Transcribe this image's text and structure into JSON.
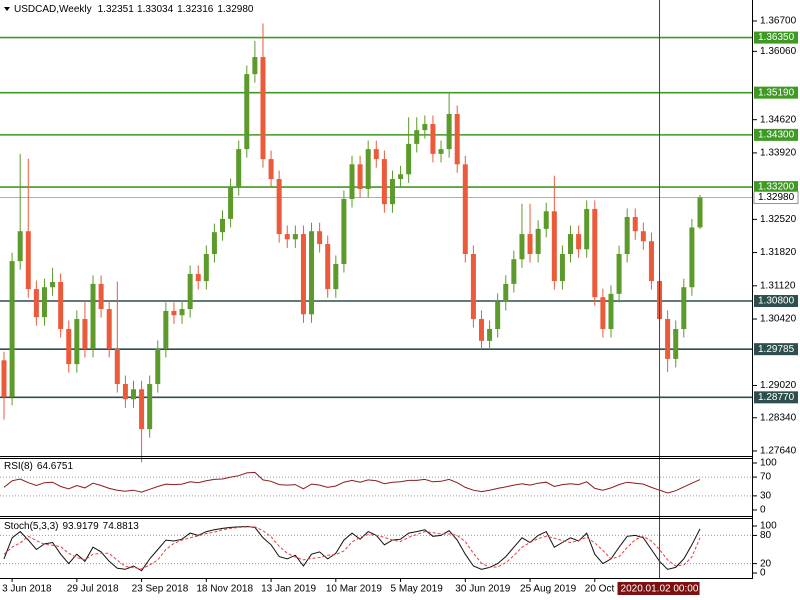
{
  "chart_data": [
    {
      "type": "candlestick",
      "symbol": "USDCAD,Weekly",
      "header_values": [
        "1.32351",
        "1.33034",
        "1.32316",
        "1.32980"
      ],
      "categories": [
        null,
        "3 Jun 2018",
        null,
        null,
        null,
        null,
        null,
        null,
        null,
        "29 Jul 2018",
        null,
        null,
        null,
        null,
        null,
        null,
        null,
        "23 Sep 2018",
        null,
        null,
        null,
        null,
        null,
        null,
        null,
        "18 Nov 2018",
        null,
        null,
        null,
        null,
        null,
        null,
        null,
        "13 Jan 2019",
        null,
        null,
        null,
        null,
        null,
        null,
        null,
        "10 Mar 2019",
        null,
        null,
        null,
        null,
        null,
        null,
        null,
        "5 May 2019",
        null,
        null,
        null,
        null,
        null,
        null,
        null,
        "30 Jun 2019",
        null,
        null,
        null,
        null,
        null,
        null,
        null,
        "25 Aug 2019",
        null,
        null,
        null,
        null,
        null,
        null,
        null,
        "20 Oct 2019",
        null,
        null,
        null,
        null,
        null,
        null,
        null,
        "2020.01.02 00:00",
        null,
        null,
        null,
        null,
        null
      ],
      "open": [
        1.2955,
        1.2878,
        1.3164,
        1.3227,
        1.3105,
        1.3046,
        1.3109,
        1.312,
        1.3021,
        1.2947,
        1.3042,
        1.2979,
        1.3116,
        1.3063,
        1.2979,
        1.2905,
        1.2873,
        1.2894,
        1.281,
        1.2905,
        1.2979,
        1.3059,
        1.305,
        1.3063,
        1.3137,
        1.3122,
        1.3179,
        1.3225,
        1.3253,
        1.332,
        1.34,
        1.3558,
        1.3594,
        1.3379,
        1.3337,
        1.3221,
        1.321,
        1.3221,
        1.3052,
        1.3227,
        1.32,
        1.3105,
        1.3158,
        1.3295,
        1.3368,
        1.3316,
        1.34,
        1.3379,
        1.3284,
        1.3337,
        1.3347,
        1.3411,
        1.344,
        1.3453,
        1.339,
        1.34,
        1.3474,
        1.3368,
        1.3179,
        1.3042,
        1.2996,
        1.3021,
        1.3078,
        1.3116,
        1.3168,
        1.3221,
        1.3179,
        1.3232,
        1.3269,
        1.3122,
        1.3179,
        1.3221,
        1.3189,
        1.3274,
        1.3088,
        1.3021,
        1.3095,
        1.3179,
        1.3257,
        1.3227,
        1.3206,
        1.3122,
        1.3042,
        1.2958,
        1.3021,
        1.3109,
        1.32351
      ],
      "high": [
        1.2973,
        1.3182,
        1.339,
        1.338,
        1.3123,
        1.3127,
        1.315,
        1.3138,
        1.3039,
        1.306,
        1.308,
        1.3134,
        1.3134,
        1.3081,
        1.3121,
        1.2923,
        1.2912,
        1.2912,
        1.2923,
        1.2997,
        1.3077,
        1.3077,
        1.3081,
        1.3155,
        1.3155,
        1.3197,
        1.3243,
        1.3271,
        1.3338,
        1.3418,
        1.3576,
        1.3628,
        1.3665,
        1.3397,
        1.3355,
        1.3239,
        1.3239,
        1.3239,
        1.3245,
        1.3245,
        1.3218,
        1.3176,
        1.3313,
        1.3386,
        1.3386,
        1.3418,
        1.3418,
        1.3397,
        1.3355,
        1.3365,
        1.3467,
        1.3467,
        1.3471,
        1.3471,
        1.3418,
        1.352,
        1.3492,
        1.3386,
        1.3197,
        1.306,
        1.3039,
        1.3096,
        1.3134,
        1.3186,
        1.3285,
        1.3285,
        1.325,
        1.3287,
        1.3344,
        1.3197,
        1.3239,
        1.3239,
        1.3292,
        1.3292,
        1.3106,
        1.3113,
        1.3197,
        1.3275,
        1.3275,
        1.3245,
        1.3224,
        1.314,
        1.306,
        1.3039,
        1.3127,
        1.3253,
        1.33034
      ],
      "low": [
        1.283,
        1.286,
        1.3146,
        1.3087,
        1.3028,
        1.3028,
        1.3091,
        1.3003,
        1.2929,
        1.2929,
        1.2961,
        1.2961,
        1.3045,
        1.2961,
        1.2887,
        1.2855,
        1.2855,
        1.274,
        1.2792,
        1.2887,
        1.2961,
        1.3032,
        1.3032,
        1.3045,
        1.3104,
        1.3104,
        1.3161,
        1.3207,
        1.3235,
        1.3302,
        1.3382,
        1.354,
        1.3361,
        1.3319,
        1.3203,
        1.3192,
        1.3192,
        1.3034,
        1.3034,
        1.3182,
        1.3087,
        1.3087,
        1.314,
        1.3277,
        1.3298,
        1.3298,
        1.3361,
        1.3266,
        1.3266,
        1.3319,
        1.3329,
        1.3393,
        1.3422,
        1.3372,
        1.3372,
        1.3382,
        1.335,
        1.3161,
        1.3024,
        1.2978,
        1.2978,
        1.3003,
        1.306,
        1.3098,
        1.315,
        1.3161,
        1.3161,
        1.3214,
        1.3104,
        1.3104,
        1.3161,
        1.3171,
        1.3171,
        1.307,
        1.3003,
        1.3003,
        1.3077,
        1.3161,
        1.3209,
        1.3188,
        1.3104,
        1.3024,
        1.293,
        1.294,
        1.3003,
        1.3091,
        1.32316
      ],
      "close": [
        1.2878,
        1.3164,
        1.3227,
        1.3105,
        1.3046,
        1.3109,
        1.312,
        1.3021,
        1.2947,
        1.3042,
        1.2979,
        1.3116,
        1.3063,
        1.2979,
        1.2905,
        1.2873,
        1.2894,
        1.281,
        1.2905,
        1.2979,
        1.3059,
        1.305,
        1.3063,
        1.3137,
        1.3122,
        1.3179,
        1.3225,
        1.3253,
        1.332,
        1.34,
        1.3558,
        1.3594,
        1.3379,
        1.3337,
        1.3221,
        1.321,
        1.3221,
        1.3052,
        1.3227,
        1.32,
        1.3105,
        1.3158,
        1.3295,
        1.3368,
        1.3316,
        1.34,
        1.3379,
        1.3284,
        1.3337,
        1.3347,
        1.3411,
        1.344,
        1.3453,
        1.339,
        1.34,
        1.3474,
        1.3368,
        1.3179,
        1.3042,
        1.2996,
        1.3021,
        1.3078,
        1.3116,
        1.3168,
        1.3221,
        1.3179,
        1.3232,
        1.3269,
        1.3122,
        1.3179,
        1.3221,
        1.3189,
        1.3274,
        1.3088,
        1.3021,
        1.3095,
        1.3179,
        1.3257,
        1.3227,
        1.3206,
        1.3122,
        1.3042,
        1.2958,
        1.3021,
        1.3109,
        1.3235,
        1.3298
      ],
      "up_color": "#5b9a2b",
      "down_color": "#ea5a3b",
      "ylim": [
        1.27555,
        1.37142
      ],
      "yticks": [
        {
          "value": 1.367,
          "label": "1.36700"
        },
        {
          "value": 1.3606,
          "label": "1.36060"
        },
        {
          "value": 1.3462,
          "label": "1.34620"
        },
        {
          "value": 1.3392,
          "label": "1.33920"
        },
        {
          "value": 1.3252,
          "label": "1.32520"
        },
        {
          "value": 1.3182,
          "label": "1.31820"
        },
        {
          "value": 1.3112,
          "label": "1.31120"
        },
        {
          "value": 1.3042,
          "label": "1.30420"
        },
        {
          "value": 1.2902,
          "label": "1.29020"
        },
        {
          "value": 1.2834,
          "label": "1.28340"
        },
        {
          "value": 1.2764,
          "label": "1.27640"
        }
      ],
      "levels": [
        {
          "value": 1.3635,
          "label": "1.36350",
          "color": "#3f9a24"
        },
        {
          "value": 1.3519,
          "label": "1.35190",
          "color": "#3f9a24"
        },
        {
          "value": 1.343,
          "label": "1.34300",
          "color": "#3f9a24"
        },
        {
          "value": 1.332,
          "label": "1.33200",
          "color": "#3f9a24"
        },
        {
          "value": 1.308,
          "label": "1.30800",
          "color": "#2f4f4f"
        },
        {
          "value": 1.29785,
          "label": "1.29785",
          "color": "#2f4f4f"
        },
        {
          "value": 1.2877,
          "label": "1.28770",
          "color": "#2f4f4f"
        }
      ],
      "current_price": {
        "value": 1.3298,
        "label": "1.32980",
        "color": "#8a96a3"
      },
      "crosshair": "2020.01.02 00:00",
      "crosshair_color": "#6b2a6b",
      "crosshair_label_color": "#7a1010"
    },
    {
      "type": "line",
      "title": "RSI(8)",
      "ylim": [
        -15,
        108.5
      ],
      "yticks": [
        100,
        70,
        30,
        0
      ],
      "guides": [
        70,
        30
      ],
      "series": [
        {
          "color": "#8b1c1c",
          "dash": false,
          "values": [
            48,
            62,
            66,
            58,
            52,
            58,
            59,
            50,
            45,
            52,
            47,
            57,
            52,
            46,
            42,
            40,
            42,
            38,
            44,
            50,
            55,
            54,
            55,
            60,
            58,
            62,
            65,
            66,
            70,
            73,
            79,
            80,
            64,
            61,
            54,
            53,
            54,
            45,
            55,
            53,
            48,
            51,
            59,
            63,
            59,
            64,
            62,
            56,
            59,
            60,
            63,
            63,
            65,
            60,
            61,
            65,
            58,
            48,
            42,
            39,
            42,
            46,
            49,
            53,
            56,
            53,
            57,
            59,
            50,
            54,
            56,
            54,
            60,
            46,
            42,
            47,
            54,
            59,
            57,
            55,
            48,
            42,
            36,
            41,
            49,
            57,
            64.6751
          ]
        }
      ]
    },
    {
      "type": "line",
      "title": "Stoch(5,3,3)",
      "ylim": [
        -10.6,
        114.9
      ],
      "yticks": [
        100,
        80,
        20,
        0
      ],
      "guides": [
        80,
        20
      ],
      "series": [
        {
          "color": "#111111",
          "dash": false,
          "values": [
            30,
            75,
            88,
            70,
            50,
            62,
            65,
            40,
            20,
            40,
            25,
            55,
            45,
            25,
            10,
            8,
            15,
            5,
            30,
            50,
            70,
            68,
            72,
            85,
            80,
            88,
            92,
            95,
            97,
            98,
            99,
            97,
            75,
            60,
            35,
            30,
            38,
            15,
            40,
            45,
            30,
            42,
            70,
            85,
            72,
            88,
            80,
            60,
            70,
            72,
            85,
            88,
            92,
            78,
            80,
            90,
            70,
            40,
            15,
            8,
            12,
            20,
            35,
            55,
            75,
            65,
            80,
            88,
            55,
            65,
            75,
            68,
            85,
            40,
            20,
            30,
            55,
            78,
            80,
            75,
            50,
            25,
            8,
            12,
            30,
            60,
            93.9179
          ]
        },
        {
          "color": "#e04040",
          "dash": true,
          "values": [
            40,
            55,
            64,
            78,
            69,
            61,
            59,
            56,
            42,
            33,
            28,
            40,
            42,
            42,
            27,
            14,
            11,
            9,
            17,
            28,
            50,
            63,
            70,
            75,
            79,
            84,
            87,
            92,
            95,
            97,
            98,
            98,
            90,
            77,
            57,
            42,
            34,
            28,
            31,
            33,
            38,
            39,
            47,
            66,
            76,
            82,
            80,
            76,
            70,
            67,
            76,
            82,
            88,
            86,
            83,
            83,
            80,
            67,
            42,
            21,
            12,
            13,
            22,
            37,
            55,
            65,
            73,
            78,
            74,
            69,
            65,
            69,
            76,
            64,
            48,
            30,
            35,
            54,
            71,
            78,
            68,
            50,
            28,
            15,
            17,
            34,
            74.8813
          ]
        }
      ]
    }
  ]
}
